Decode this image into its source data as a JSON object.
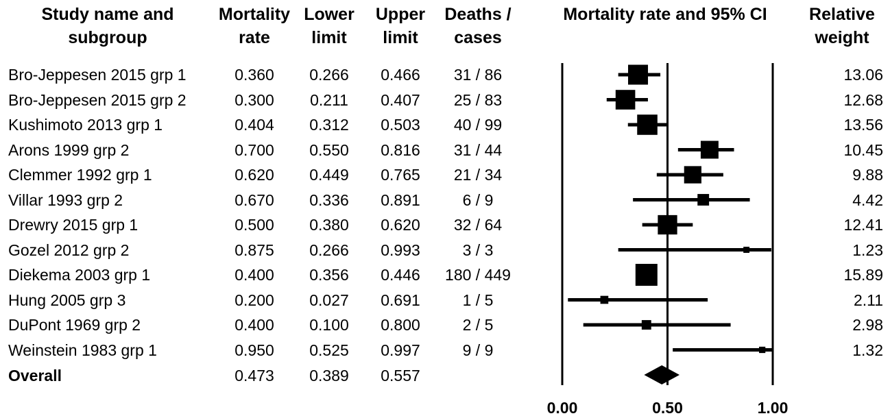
{
  "headers": {
    "study_1": "Study name and",
    "study_2": "subgroup",
    "rate_1": "Mortality",
    "rate_2": "rate",
    "lower_1": "Lower",
    "lower_2": "limit",
    "upper_1": "Upper",
    "upper_2": "limit",
    "deaths_1": "Deaths /",
    "deaths_2": "cases",
    "plot_title": "Mortality rate and 95% CI",
    "weight_1": "Relative",
    "weight_2": "weight"
  },
  "rows": [
    {
      "study": "Bro-Jeppesen 2015 grp 1",
      "rate": "0.360",
      "lower": "0.266",
      "upper": "0.466",
      "deaths": "31 / 86",
      "weight": "13.06"
    },
    {
      "study": "Bro-Jeppesen 2015 grp 2",
      "rate": "0.300",
      "lower": "0.211",
      "upper": "0.407",
      "deaths": "25 / 83",
      "weight": "12.68"
    },
    {
      "study": "Kushimoto 2013 grp 1",
      "rate": "0.404",
      "lower": "0.312",
      "upper": "0.503",
      "deaths": "40 / 99",
      "weight": "13.56"
    },
    {
      "study": "Arons 1999 grp 2",
      "rate": "0.700",
      "lower": "0.550",
      "upper": "0.816",
      "deaths": "31 / 44",
      "weight": "10.45"
    },
    {
      "study": "Clemmer 1992 grp 1",
      "rate": "0.620",
      "lower": "0.449",
      "upper": "0.765",
      "deaths": "21 / 34",
      "weight": "9.88"
    },
    {
      "study": "Villar 1993 grp 2",
      "rate": "0.670",
      "lower": "0.336",
      "upper": "0.891",
      "deaths": "6 / 9",
      "weight": "4.42"
    },
    {
      "study": "Drewry 2015 grp 1",
      "rate": "0.500",
      "lower": "0.380",
      "upper": "0.620",
      "deaths": "32 / 64",
      "weight": "12.41"
    },
    {
      "study": "Gozel 2012 grp 2",
      "rate": "0.875",
      "lower": "0.266",
      "upper": "0.993",
      "deaths": "3 / 3",
      "weight": "1.23"
    },
    {
      "study": "Diekema 2003 grp 1",
      "rate": "0.400",
      "lower": "0.356",
      "upper": "0.446",
      "deaths": "180 / 449",
      "weight": "15.89"
    },
    {
      "study": "Hung 2005 grp 3",
      "rate": "0.200",
      "lower": "0.027",
      "upper": "0.691",
      "deaths": "1 / 5",
      "weight": "2.11"
    },
    {
      "study": "DuPont 1969 grp 2",
      "rate": "0.400",
      "lower": "0.100",
      "upper": "0.800",
      "deaths": "2 / 5",
      "weight": "2.98"
    },
    {
      "study": "Weinstein 1983 grp 1",
      "rate": "0.950",
      "lower": "0.525",
      "upper": "0.997",
      "deaths": "9 / 9",
      "weight": "1.32"
    }
  ],
  "overall": {
    "study": "Overall",
    "rate": "0.473",
    "lower": "0.389",
    "upper": "0.557"
  },
  "chart_data": {
    "type": "forest",
    "title": "Mortality rate and 95% CI",
    "xlim": [
      0,
      1
    ],
    "x_ticks": [
      "0.00",
      "0.50",
      "1.00"
    ],
    "reference_line": 0.5,
    "series": [
      {
        "points": [
          {
            "label": "Bro-Jeppesen 2015 grp 1",
            "estimate": 0.36,
            "lower": 0.266,
            "upper": 0.466,
            "weight": 13.06
          },
          {
            "label": "Bro-Jeppesen 2015 grp 2",
            "estimate": 0.3,
            "lower": 0.211,
            "upper": 0.407,
            "weight": 12.68
          },
          {
            "label": "Kushimoto 2013 grp 1",
            "estimate": 0.404,
            "lower": 0.312,
            "upper": 0.503,
            "weight": 13.56
          },
          {
            "label": "Arons 1999 grp 2",
            "estimate": 0.7,
            "lower": 0.55,
            "upper": 0.816,
            "weight": 10.45
          },
          {
            "label": "Clemmer 1992 grp 1",
            "estimate": 0.62,
            "lower": 0.449,
            "upper": 0.765,
            "weight": 9.88
          },
          {
            "label": "Villar 1993 grp 2",
            "estimate": 0.67,
            "lower": 0.336,
            "upper": 0.891,
            "weight": 4.42
          },
          {
            "label": "Drewry 2015 grp 1",
            "estimate": 0.5,
            "lower": 0.38,
            "upper": 0.62,
            "weight": 12.41
          },
          {
            "label": "Gozel 2012 grp 2",
            "estimate": 0.875,
            "lower": 0.266,
            "upper": 0.993,
            "weight": 1.23
          },
          {
            "label": "Diekema 2003 grp 1",
            "estimate": 0.4,
            "lower": 0.356,
            "upper": 0.446,
            "weight": 15.89
          },
          {
            "label": "Hung 2005 grp 3",
            "estimate": 0.2,
            "lower": 0.027,
            "upper": 0.691,
            "weight": 2.11
          },
          {
            "label": "DuPont 1969 grp 2",
            "estimate": 0.4,
            "lower": 0.1,
            "upper": 0.8,
            "weight": 2.98
          },
          {
            "label": "Weinstein 1983 grp 1",
            "estimate": 0.95,
            "lower": 0.525,
            "upper": 0.997,
            "weight": 1.32
          }
        ]
      }
    ],
    "overall": {
      "estimate": 0.473,
      "lower": 0.389,
      "upper": 0.557
    }
  }
}
